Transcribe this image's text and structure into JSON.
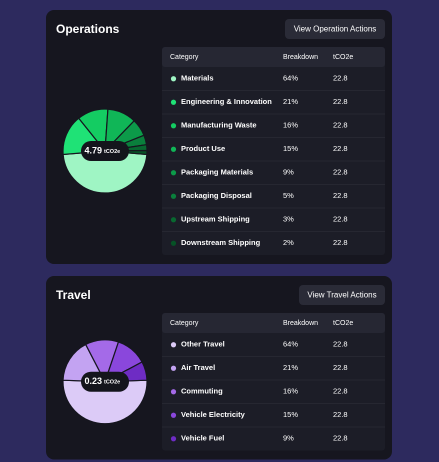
{
  "cards": [
    {
      "title": "Operations",
      "button": "View Operation Actions",
      "total": 4.79,
      "unit": "tCO2e",
      "columns": [
        "Category",
        "Breakdown",
        "tCO2e"
      ],
      "categories": [
        "Materials",
        "Engineering & Innovation",
        "Manufacturing Waste",
        "Product Use",
        "Packaging Materials",
        "Packaging Disposal",
        "Upstream Shipping",
        "Downstream Shipping"
      ],
      "values": [
        64,
        21,
        16,
        15,
        9,
        5,
        3,
        2
      ],
      "value_labels": [
        "64%",
        "21%",
        "16%",
        "15%",
        "9%",
        "5%",
        "3%",
        "2%"
      ],
      "emissions": [
        22.8,
        22.8,
        22.8,
        22.8,
        22.8,
        22.8,
        22.8,
        22.8
      ],
      "colors": [
        "#9ff5c4",
        "#1fe276",
        "#14cc62",
        "#10b657",
        "#0c9a49",
        "#0a7f3c",
        "#086830",
        "#065226"
      ]
    },
    {
      "title": "Travel",
      "button": "View Travel Actions",
      "total": 0.23,
      "unit": "tCO2e",
      "columns": [
        "Category",
        "Breakdown",
        "tCO2e"
      ],
      "categories": [
        "Other Travel",
        "Air Travel",
        "Commuting",
        "Vehicle Electricity",
        "Vehicle Fuel"
      ],
      "values": [
        64,
        21,
        16,
        15,
        9
      ],
      "value_labels": [
        "64%",
        "21%",
        "16%",
        "15%",
        "9%"
      ],
      "emissions": [
        22.8,
        22.8,
        22.8,
        22.8,
        22.8
      ],
      "colors": [
        "#dccbf7",
        "#c3a3f2",
        "#a46ae8",
        "#8a47dc",
        "#6e2cc4"
      ]
    }
  ]
}
